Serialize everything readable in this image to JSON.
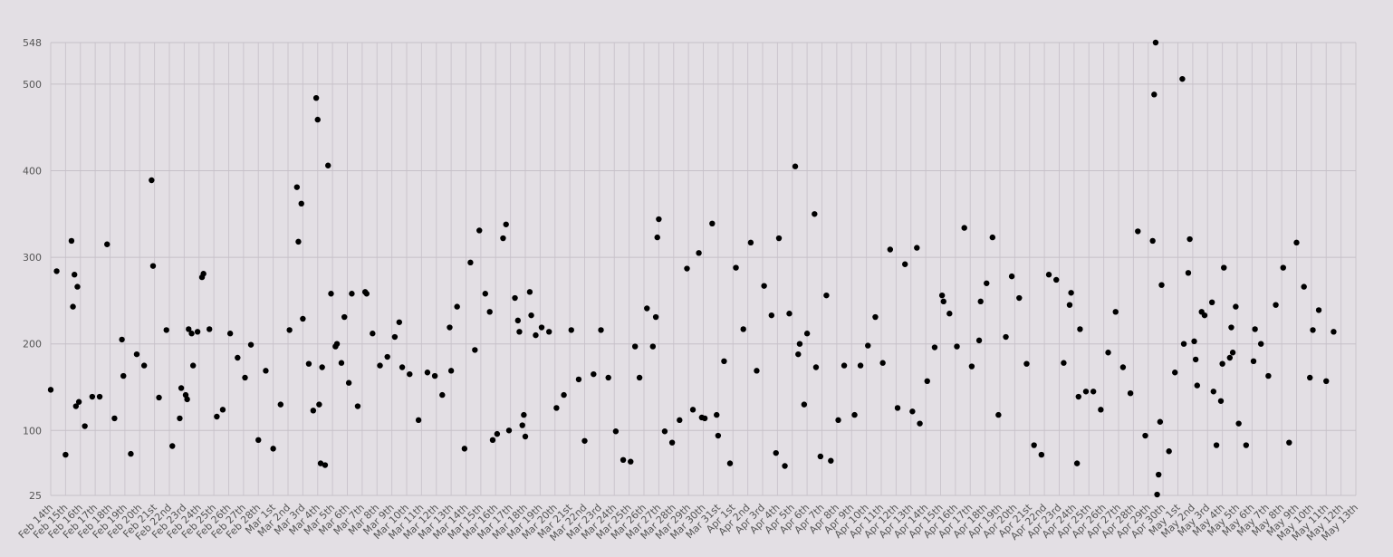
{
  "chart_data": {
    "type": "scatter",
    "title": "",
    "xlabel": "",
    "ylabel": "",
    "ylim": [
      25,
      548
    ],
    "yticks": [
      25,
      100,
      200,
      300,
      400,
      500,
      548
    ],
    "grid": true,
    "legend": "none",
    "categories": [
      "Feb 14th",
      "Feb 15th",
      "Feb 16th",
      "Feb 17th",
      "Feb 18th",
      "Feb 19th",
      "Feb 20th",
      "Feb 21st",
      "Feb 22nd",
      "Feb 23rd",
      "Feb 24th",
      "Feb 25th",
      "Feb 26th",
      "Feb 27th",
      "Feb 28th",
      "Mar 1st",
      "Mar 2nd",
      "Mar 3rd",
      "Mar 4th",
      "Mar 5th",
      "Mar 6th",
      "Mar 7th",
      "Mar 8th",
      "Mar 9th",
      "Mar 10th",
      "Mar 11th",
      "Mar 12th",
      "Mar 13th",
      "Mar 14th",
      "Mar 15th",
      "Mar 16th",
      "Mar 17th",
      "Mar 18th",
      "Mar 19th",
      "Mar 20th",
      "Mar 21st",
      "Mar 22nd",
      "Mar 23rd",
      "Mar 24th",
      "Mar 25th",
      "Mar 26th",
      "Mar 27th",
      "Mar 28th",
      "Mar 29th",
      "Mar 30th",
      "Mar 31st",
      "Apr 1st",
      "Apr 2nd",
      "Apr 3rd",
      "Apr 4th",
      "Apr 5th",
      "Apr 6th",
      "Apr 7th",
      "Apr 8th",
      "Apr 9th",
      "Apr 10th",
      "Apr 11th",
      "Apr 12th",
      "Apr 13th",
      "Apr 14th",
      "Apr 15th",
      "Apr 16th",
      "Apr 17th",
      "Apr 18th",
      "Apr 19th",
      "Apr 20th",
      "Apr 21st",
      "Apr 22nd",
      "Apr 23rd",
      "Apr 24th",
      "Apr 25th",
      "Apr 26th",
      "Apr 27th",
      "Apr 28th",
      "Apr 29th",
      "Apr 30th",
      "May 1st",
      "May 2nd",
      "May 3rd",
      "May 4th",
      "May 5th",
      "May 6th",
      "May 7th",
      "May 8th",
      "May 9th",
      "May 10th",
      "May 11th",
      "May 12th",
      "May 13th"
    ],
    "points": [
      [
        0,
        147
      ],
      [
        0.4,
        284
      ],
      [
        1,
        72
      ],
      [
        1.4,
        319
      ],
      [
        1.5,
        243
      ],
      [
        1.6,
        280
      ],
      [
        1.7,
        128
      ],
      [
        1.8,
        266
      ],
      [
        1.9,
        133
      ],
      [
        2.3,
        105
      ],
      [
        2.8,
        139
      ],
      [
        3.3,
        139
      ],
      [
        3.8,
        315
      ],
      [
        4.3,
        114
      ],
      [
        4.8,
        205
      ],
      [
        4.9,
        163
      ],
      [
        5.4,
        73
      ],
      [
        5.8,
        188
      ],
      [
        6.3,
        175
      ],
      [
        6.8,
        389
      ],
      [
        6.9,
        290
      ],
      [
        7.3,
        138
      ],
      [
        7.8,
        216
      ],
      [
        8.2,
        82
      ],
      [
        8.7,
        114
      ],
      [
        8.8,
        149
      ],
      [
        9.1,
        141
      ],
      [
        9.2,
        136
      ],
      [
        9.3,
        217
      ],
      [
        9.5,
        212
      ],
      [
        9.6,
        175
      ],
      [
        9.9,
        214
      ],
      [
        10.2,
        277
      ],
      [
        10.3,
        281
      ],
      [
        10.7,
        217
      ],
      [
        11.2,
        116
      ],
      [
        11.6,
        124
      ],
      [
        12.1,
        212
      ],
      [
        12.6,
        184
      ],
      [
        13.1,
        161
      ],
      [
        13.5,
        199
      ],
      [
        14,
        89
      ],
      [
        14.5,
        169
      ],
      [
        15,
        79
      ],
      [
        15.5,
        130
      ],
      [
        16.1,
        216
      ],
      [
        16.6,
        381
      ],
      [
        16.7,
        318
      ],
      [
        16.9,
        362
      ],
      [
        17,
        229
      ],
      [
        17.4,
        177
      ],
      [
        17.7,
        123
      ],
      [
        17.9,
        484
      ],
      [
        18,
        459
      ],
      [
        18.1,
        130
      ],
      [
        18.2,
        62
      ],
      [
        18.3,
        173
      ],
      [
        18.5,
        60
      ],
      [
        18.7,
        406
      ],
      [
        18.9,
        258
      ],
      [
        19.2,
        197
      ],
      [
        19.3,
        200
      ],
      [
        19.6,
        178
      ],
      [
        19.8,
        231
      ],
      [
        20.1,
        155
      ],
      [
        20.3,
        258
      ],
      [
        20.7,
        128
      ],
      [
        21.2,
        260
      ],
      [
        21.3,
        258
      ],
      [
        21.7,
        212
      ],
      [
        22.2,
        175
      ],
      [
        22.7,
        185
      ],
      [
        23.2,
        208
      ],
      [
        23.5,
        225
      ],
      [
        23.7,
        173
      ],
      [
        24.2,
        165
      ],
      [
        24.8,
        112
      ],
      [
        25.4,
        167
      ],
      [
        25.9,
        163
      ],
      [
        26.4,
        141
      ],
      [
        26.9,
        219
      ],
      [
        27,
        169
      ],
      [
        27.4,
        243
      ],
      [
        27.9,
        79
      ],
      [
        28.3,
        294
      ],
      [
        28.6,
        193
      ],
      [
        28.9,
        331
      ],
      [
        29.3,
        258
      ],
      [
        29.6,
        237
      ],
      [
        29.8,
        89
      ],
      [
        30.1,
        96
      ],
      [
        30.5,
        322
      ],
      [
        30.7,
        338
      ],
      [
        30.9,
        100
      ],
      [
        31.3,
        253
      ],
      [
        31.5,
        227
      ],
      [
        31.6,
        214
      ],
      [
        31.8,
        106
      ],
      [
        31.9,
        118
      ],
      [
        32,
        93
      ],
      [
        32.3,
        260
      ],
      [
        32.4,
        233
      ],
      [
        32.7,
        210
      ],
      [
        33.1,
        219
      ],
      [
        33.6,
        214
      ],
      [
        34.1,
        126
      ],
      [
        34.6,
        141
      ],
      [
        35.1,
        216
      ],
      [
        35.6,
        159
      ],
      [
        36,
        88
      ],
      [
        36.6,
        165
      ],
      [
        37.1,
        216
      ],
      [
        37.6,
        161
      ],
      [
        38.1,
        99
      ],
      [
        38.6,
        66
      ],
      [
        39.1,
        64
      ],
      [
        39.4,
        197
      ],
      [
        39.7,
        161
      ],
      [
        40.2,
        241
      ],
      [
        40.6,
        197
      ],
      [
        40.8,
        231
      ],
      [
        40.9,
        323
      ],
      [
        41,
        344
      ],
      [
        41.4,
        99
      ],
      [
        41.9,
        86
      ],
      [
        42.4,
        112
      ],
      [
        42.9,
        287
      ],
      [
        43.3,
        124
      ],
      [
        43.7,
        305
      ],
      [
        43.9,
        115
      ],
      [
        44.1,
        114
      ],
      [
        44.6,
        339
      ],
      [
        44.9,
        118
      ],
      [
        45,
        94
      ],
      [
        45.4,
        180
      ],
      [
        45.8,
        62
      ],
      [
        46.2,
        288
      ],
      [
        46.7,
        217
      ],
      [
        47.2,
        317
      ],
      [
        47.6,
        169
      ],
      [
        48.1,
        267
      ],
      [
        48.6,
        233
      ],
      [
        48.9,
        74
      ],
      [
        49.1,
        322
      ],
      [
        49.5,
        59
      ],
      [
        49.8,
        235
      ],
      [
        50.2,
        405
      ],
      [
        50.4,
        188
      ],
      [
        50.5,
        200
      ],
      [
        50.8,
        130
      ],
      [
        51,
        212
      ],
      [
        51.5,
        350
      ],
      [
        51.6,
        173
      ],
      [
        51.9,
        70
      ],
      [
        52.3,
        256
      ],
      [
        52.6,
        65
      ],
      [
        53.1,
        112
      ],
      [
        53.5,
        175
      ],
      [
        54.2,
        118
      ],
      [
        54.6,
        175
      ],
      [
        55.1,
        198
      ],
      [
        55.6,
        231
      ],
      [
        56.1,
        178
      ],
      [
        56.6,
        309
      ],
      [
        57.1,
        126
      ],
      [
        57.6,
        292
      ],
      [
        58.1,
        122
      ],
      [
        58.4,
        311
      ],
      [
        58.6,
        108
      ],
      [
        59.1,
        157
      ],
      [
        59.6,
        196
      ],
      [
        60.1,
        256
      ],
      [
        60.2,
        249
      ],
      [
        60.6,
        235
      ],
      [
        61.1,
        197
      ],
      [
        61.6,
        334
      ],
      [
        62.1,
        174
      ],
      [
        62.6,
        204
      ],
      [
        62.7,
        249
      ],
      [
        63.1,
        270
      ],
      [
        63.5,
        323
      ],
      [
        63.9,
        118
      ],
      [
        64.4,
        208
      ],
      [
        64.8,
        278
      ],
      [
        65.3,
        253
      ],
      [
        65.8,
        177
      ],
      [
        66.3,
        83
      ],
      [
        66.8,
        72
      ],
      [
        67.3,
        280
      ],
      [
        67.8,
        274
      ],
      [
        68.3,
        178
      ],
      [
        68.7,
        245
      ],
      [
        68.8,
        259
      ],
      [
        69.2,
        62
      ],
      [
        69.3,
        139
      ],
      [
        69.4,
        217
      ],
      [
        69.8,
        145
      ],
      [
        70.3,
        145
      ],
      [
        70.8,
        124
      ],
      [
        71.3,
        190
      ],
      [
        71.8,
        237
      ],
      [
        72.3,
        173
      ],
      [
        72.8,
        143
      ],
      [
        73.3,
        330
      ],
      [
        73.8,
        94
      ],
      [
        74.3,
        319
      ],
      [
        74.4,
        488
      ],
      [
        74.5,
        548
      ],
      [
        74.6,
        26
      ],
      [
        74.7,
        49
      ],
      [
        74.8,
        110
      ],
      [
        74.9,
        268
      ],
      [
        75.4,
        76
      ],
      [
        75.8,
        167
      ],
      [
        76.3,
        506
      ],
      [
        76.4,
        200
      ],
      [
        76.7,
        282
      ],
      [
        76.8,
        321
      ],
      [
        77.1,
        203
      ],
      [
        77.2,
        182
      ],
      [
        77.3,
        152
      ],
      [
        77.6,
        237
      ],
      [
        77.8,
        233
      ],
      [
        78.3,
        248
      ],
      [
        78.4,
        145
      ],
      [
        78.6,
        83
      ],
      [
        78.9,
        134
      ],
      [
        79,
        177
      ],
      [
        79.1,
        288
      ],
      [
        79.5,
        184
      ],
      [
        79.6,
        219
      ],
      [
        79.7,
        190
      ],
      [
        79.9,
        243
      ],
      [
        80.1,
        108
      ],
      [
        80.6,
        83
      ],
      [
        81.1,
        180
      ],
      [
        81.2,
        217
      ],
      [
        81.6,
        200
      ],
      [
        82.1,
        163
      ],
      [
        82.6,
        245
      ],
      [
        83.1,
        288
      ],
      [
        83.5,
        86
      ],
      [
        84,
        317
      ],
      [
        84.5,
        266
      ],
      [
        84.9,
        161
      ],
      [
        85.1,
        216
      ],
      [
        85.5,
        239
      ],
      [
        86,
        157
      ],
      [
        86.5,
        214
      ]
    ]
  }
}
